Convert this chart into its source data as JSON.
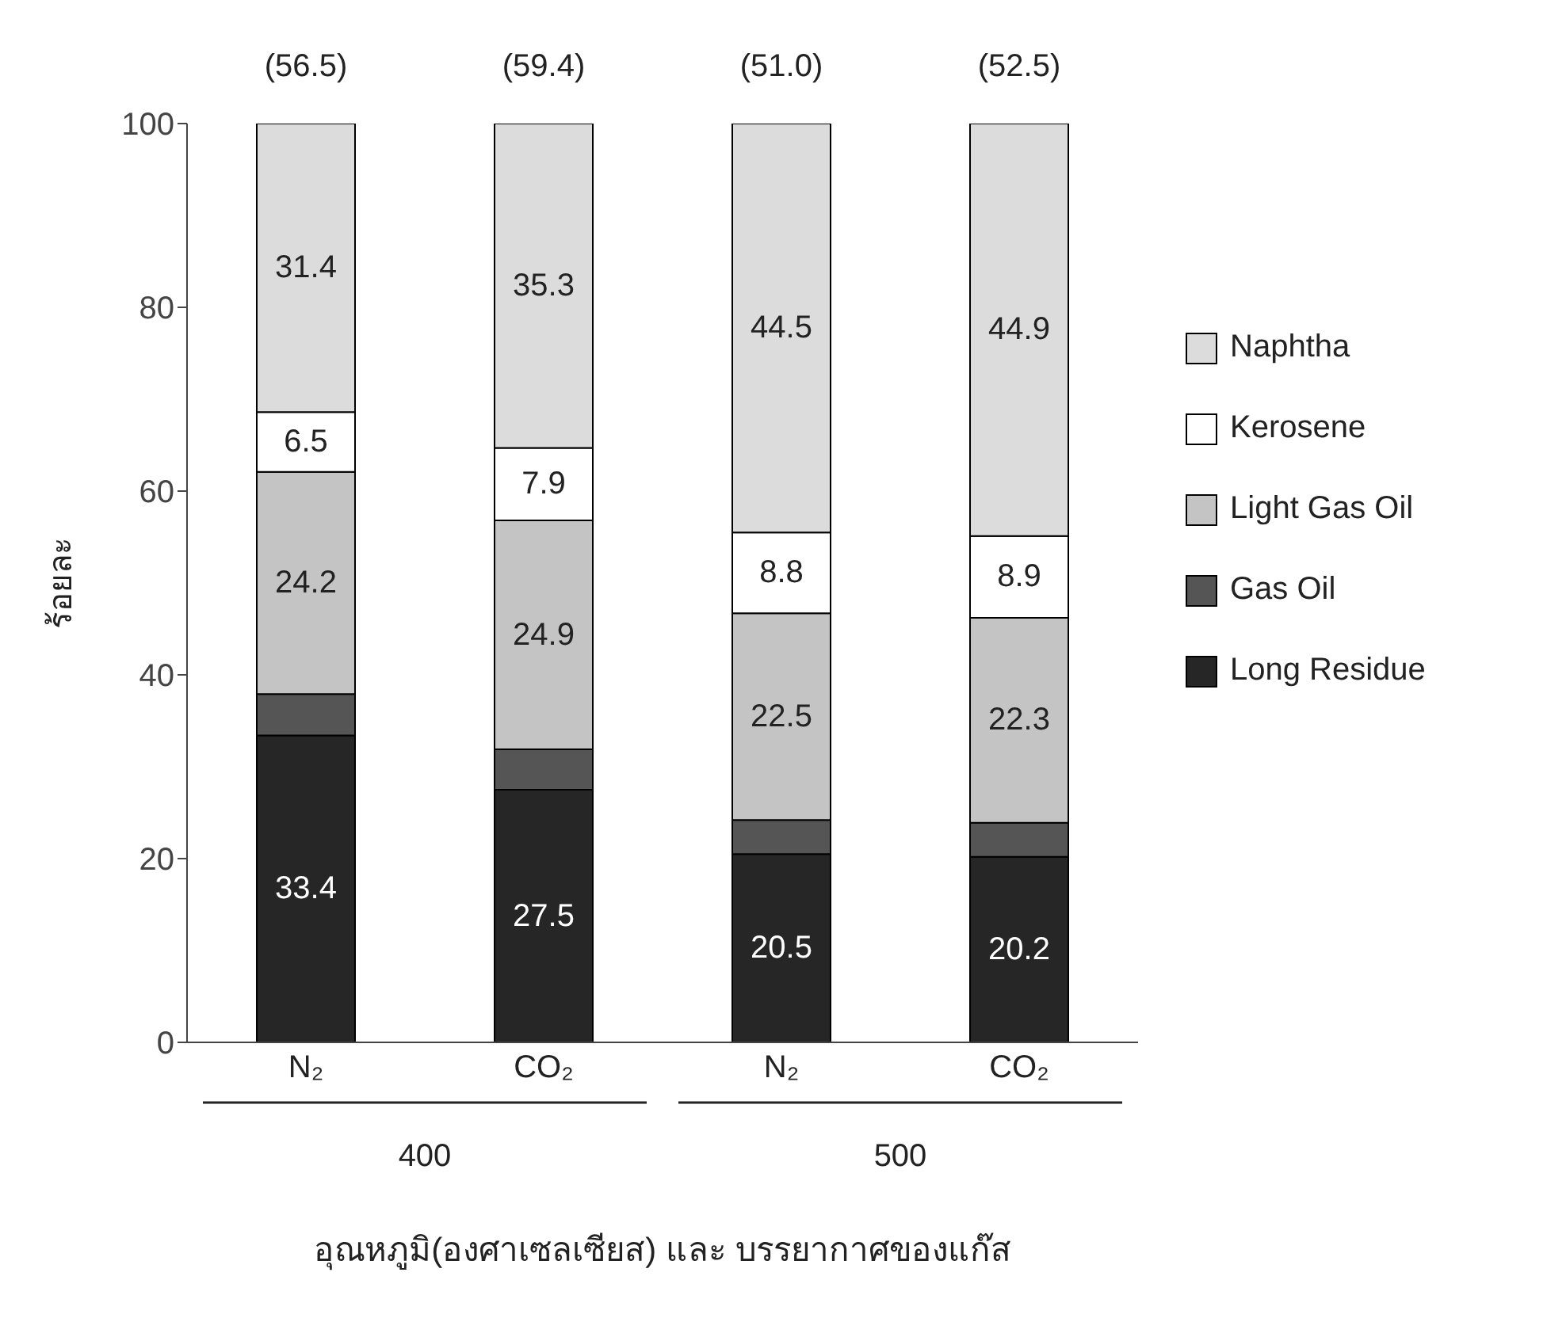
{
  "chart_data": {
    "type": "bar",
    "stacked": true,
    "xlabel": "อุณหภูมิ(องศาเซลเซียส) และ บรรยากาศของแก๊ส",
    "ylabel": "ร้อยละ",
    "categories": [
      "N₂",
      "CO₂",
      "N₂",
      "CO₂"
    ],
    "series": [
      {
        "name": "Long Residue",
        "color": "#262626",
        "values": [
          33.4,
          27.5,
          20.5,
          20.2
        ],
        "value_labels": [
          "33.4",
          "27.5",
          "20.5",
          "20.2"
        ]
      },
      {
        "name": "Gas Oil",
        "color": "#555555",
        "values": [
          4.5,
          4.4,
          3.7,
          3.7
        ],
        "value_labels": [
          null,
          null,
          null,
          null
        ]
      },
      {
        "name": "Light Gas Oil",
        "color": "#c4c4c4",
        "values": [
          24.2,
          24.9,
          22.5,
          22.3
        ],
        "value_labels": [
          "24.2",
          "24.9",
          "22.5",
          "22.3"
        ]
      },
      {
        "name": "Kerosene",
        "color": "#ffffff",
        "values": [
          6.5,
          7.9,
          8.8,
          8.9
        ],
        "value_labels": [
          "6.5",
          "7.9",
          "8.8",
          "8.9"
        ]
      },
      {
        "name": "Naphtha",
        "color": "#dcdcdc",
        "values": [
          31.4,
          35.3,
          44.5,
          44.9
        ],
        "value_labels": [
          "31.4",
          "35.3",
          "44.5",
          "44.9"
        ]
      }
    ],
    "annotations": [
      "(56.5)",
      "(59.4)",
      "(51.0)",
      "(52.5)",
      "400",
      "500"
    ],
    "ylim": [
      0,
      100
    ],
    "yticks": [
      0,
      20,
      40,
      60,
      80,
      100
    ],
    "grid": false,
    "legend": "right"
  }
}
